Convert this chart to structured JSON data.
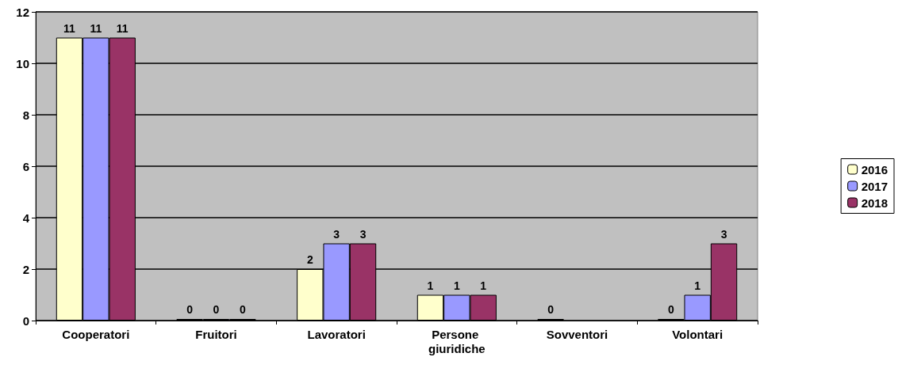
{
  "chart_data": {
    "type": "bar",
    "categories": [
      "Cooperatori",
      "Fruitori",
      "Lavoratori",
      "Persone giuridiche",
      "Sovventori",
      "Volontari"
    ],
    "series": [
      {
        "name": "2016",
        "color": "#ffffcc",
        "values": [
          11,
          0,
          2,
          1,
          0,
          0
        ]
      },
      {
        "name": "2017",
        "color": "#9999ff",
        "values": [
          11,
          0,
          3,
          1,
          null,
          1
        ]
      },
      {
        "name": "2018",
        "color": "#993366",
        "values": [
          11,
          0,
          3,
          1,
          null,
          3
        ]
      }
    ],
    "ylim": [
      0,
      12
    ],
    "yticks": [
      0,
      2,
      4,
      6,
      8,
      10,
      12
    ],
    "grid": "y",
    "legend": "right",
    "data_labels": true
  }
}
